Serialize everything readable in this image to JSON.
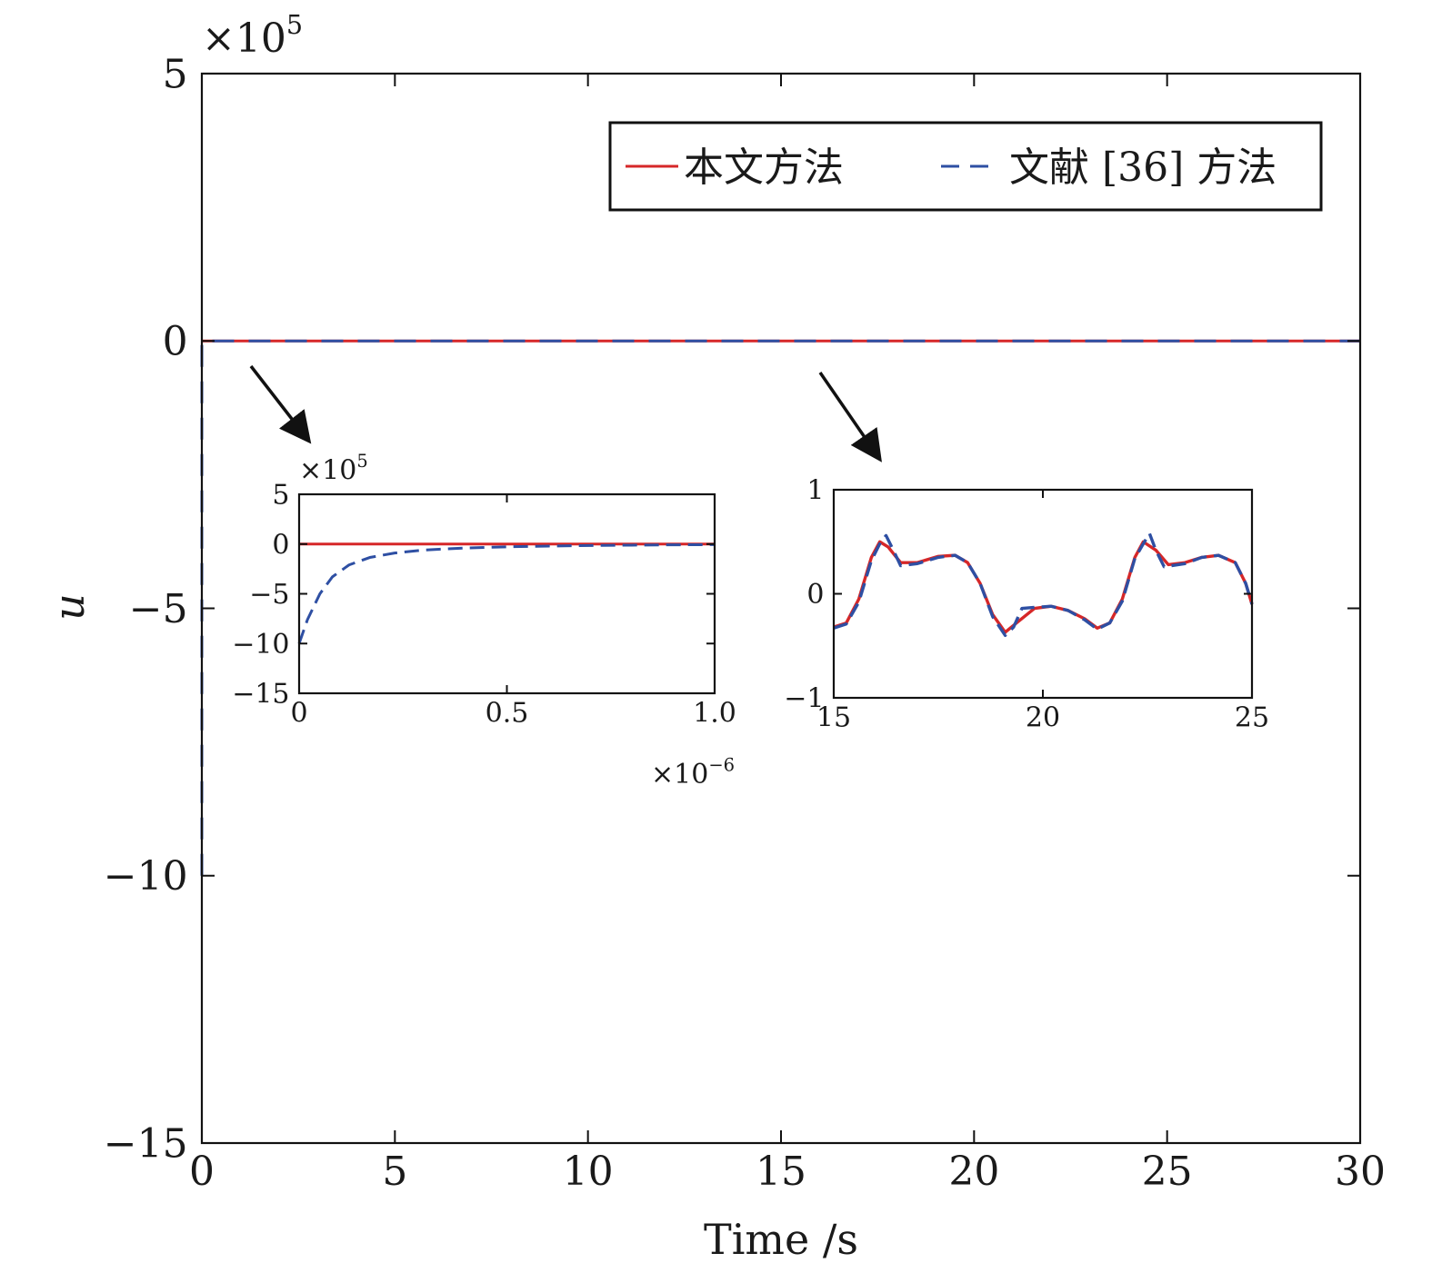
{
  "chart_data": [
    {
      "type": "line",
      "id": "main",
      "xlabel": "Time /s",
      "ylabel": "u",
      "xlim": [
        0,
        30
      ],
      "ylim": [
        -15,
        5
      ],
      "y_multiplier": "×10",
      "y_multiplier_exp": "5",
      "x_ticks": [
        0,
        5,
        10,
        15,
        20,
        25,
        30
      ],
      "x_tick_labels": [
        "0",
        "5",
        "10",
        "15",
        "20",
        "25",
        "30"
      ],
      "y_ticks": [
        5,
        0,
        -5,
        -10,
        -15
      ],
      "y_tick_labels": [
        "5",
        "0",
        "−5",
        "−10",
        "−15"
      ],
      "legend": {
        "placement": "top-right",
        "border": true
      },
      "grid": false,
      "series": [
        {
          "name": "本文方法",
          "color": "#d62728",
          "style": "solid",
          "points": [
            [
              0,
              0
            ],
            [
              30,
              0
            ]
          ]
        },
        {
          "name": "文献 [36] 方法",
          "color": "#2e4fa3",
          "style": "dashed",
          "points": [
            [
              0,
              -10
            ],
            [
              5e-07,
              -0.2
            ],
            [
              2e-06,
              0
            ],
            [
              30,
              0
            ]
          ]
        }
      ]
    },
    {
      "type": "line",
      "id": "inset1",
      "xlim": [
        0,
        1.0
      ],
      "ylim": [
        -15,
        5
      ],
      "x_multiplier": "×10",
      "x_multiplier_exp": "−6",
      "y_multiplier": "×10",
      "y_multiplier_exp": "5",
      "x_ticks": [
        0,
        0.5,
        1.0
      ],
      "x_tick_labels": [
        "0",
        "0.5",
        "1.0"
      ],
      "y_ticks": [
        5,
        0,
        -5,
        -10,
        -15
      ],
      "y_tick_labels": [
        "5",
        "0",
        "−5",
        "−10",
        "−15"
      ],
      "series": [
        {
          "color": "#d62728",
          "style": "solid",
          "points": [
            [
              0,
              0
            ],
            [
              1.0,
              0
            ]
          ]
        },
        {
          "color": "#2e4fa3",
          "style": "dashed",
          "points": [
            [
              0,
              -10
            ],
            [
              0.02,
              -7.6
            ],
            [
              0.05,
              -5.0
            ],
            [
              0.08,
              -3.3
            ],
            [
              0.12,
              -2.1
            ],
            [
              0.17,
              -1.35
            ],
            [
              0.23,
              -0.9
            ],
            [
              0.3,
              -0.6
            ],
            [
              0.4,
              -0.4
            ],
            [
              0.5,
              -0.28
            ],
            [
              0.6,
              -0.2
            ],
            [
              0.7,
              -0.15
            ],
            [
              0.8,
              -0.11
            ],
            [
              0.9,
              -0.08
            ],
            [
              1.0,
              -0.06
            ]
          ]
        }
      ]
    },
    {
      "type": "line",
      "id": "inset2",
      "xlim": [
        15,
        25
      ],
      "ylim": [
        -1,
        1
      ],
      "x_ticks": [
        15,
        20,
        25
      ],
      "x_tick_labels": [
        "15",
        "20",
        "25"
      ],
      "y_ticks": [
        1,
        0,
        -1
      ],
      "y_tick_labels": [
        "1",
        "0",
        "−1"
      ],
      "series": [
        {
          "color": "#d62728",
          "style": "solid",
          "points": [
            [
              15.0,
              -0.32
            ],
            [
              15.3,
              -0.28
            ],
            [
              15.6,
              -0.05
            ],
            [
              15.9,
              0.35
            ],
            [
              16.1,
              0.5
            ],
            [
              16.3,
              0.45
            ],
            [
              16.6,
              0.3
            ],
            [
              17.0,
              0.3
            ],
            [
              17.5,
              0.36
            ],
            [
              17.9,
              0.37
            ],
            [
              18.2,
              0.3
            ],
            [
              18.5,
              0.1
            ],
            [
              18.8,
              -0.2
            ],
            [
              19.1,
              -0.37
            ],
            [
              19.4,
              -0.27
            ],
            [
              19.8,
              -0.14
            ],
            [
              20.2,
              -0.12
            ],
            [
              20.6,
              -0.16
            ],
            [
              21.0,
              -0.24
            ],
            [
              21.3,
              -0.33
            ],
            [
              21.6,
              -0.28
            ],
            [
              21.9,
              -0.05
            ],
            [
              22.2,
              0.35
            ],
            [
              22.4,
              0.5
            ],
            [
              22.7,
              0.42
            ],
            [
              23.0,
              0.28
            ],
            [
              23.4,
              0.3
            ],
            [
              23.8,
              0.35
            ],
            [
              24.2,
              0.37
            ],
            [
              24.6,
              0.3
            ],
            [
              24.85,
              0.1
            ],
            [
              25.0,
              -0.1
            ]
          ]
        },
        {
          "color": "#2e4fa3",
          "style": "dashed",
          "points": [
            [
              15.0,
              -0.33
            ],
            [
              15.3,
              -0.29
            ],
            [
              15.6,
              -0.08
            ],
            [
              15.9,
              0.32
            ],
            [
              16.1,
              0.48
            ],
            [
              16.25,
              0.56
            ],
            [
              16.4,
              0.44
            ],
            [
              16.6,
              0.27
            ],
            [
              17.0,
              0.29
            ],
            [
              17.5,
              0.35
            ],
            [
              17.9,
              0.37
            ],
            [
              18.2,
              0.3
            ],
            [
              18.5,
              0.1
            ],
            [
              18.8,
              -0.22
            ],
            [
              19.1,
              -0.4
            ],
            [
              19.3,
              -0.32
            ],
            [
              19.5,
              -0.14
            ],
            [
              19.8,
              -0.13
            ],
            [
              20.2,
              -0.12
            ],
            [
              20.6,
              -0.16
            ],
            [
              21.0,
              -0.25
            ],
            [
              21.3,
              -0.34
            ],
            [
              21.6,
              -0.28
            ],
            [
              21.9,
              -0.07
            ],
            [
              22.2,
              0.34
            ],
            [
              22.4,
              0.48
            ],
            [
              22.55,
              0.58
            ],
            [
              22.7,
              0.42
            ],
            [
              22.9,
              0.26
            ],
            [
              23.4,
              0.29
            ],
            [
              23.8,
              0.35
            ],
            [
              24.2,
              0.37
            ],
            [
              24.6,
              0.3
            ],
            [
              24.85,
              0.1
            ],
            [
              25.0,
              -0.1
            ]
          ]
        }
      ]
    }
  ]
}
